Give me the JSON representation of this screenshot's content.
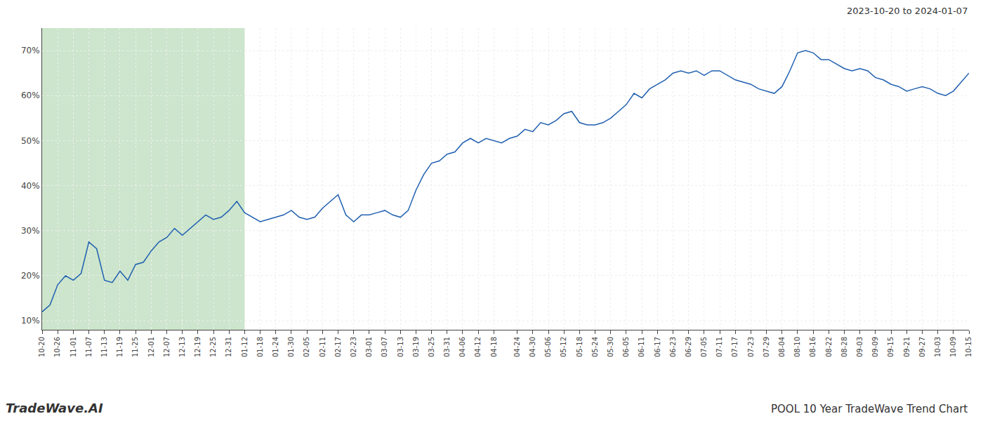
{
  "chart_data": {
    "type": "line",
    "title": "POOL 10 Year TradeWave Trend Chart",
    "subtitle": "2023-10-20 to 2024-01-07",
    "annotations": [
      "TradeWave.AI"
    ],
    "categories": [
      "10-20",
      null,
      "10-26",
      null,
      "11-01",
      null,
      "11-07",
      null,
      "11-13",
      null,
      "11-19",
      null,
      "11-25",
      null,
      "12-01",
      null,
      "12-07",
      null,
      "12-13",
      null,
      "12-19",
      null,
      "12-25",
      null,
      "12-31",
      null,
      "01-12",
      null,
      "01-18",
      null,
      "01-24",
      null,
      "01-30",
      null,
      "02-05",
      null,
      "02-11",
      null,
      "02-17",
      null,
      "02-23",
      null,
      "03-01",
      null,
      "03-07",
      null,
      "03-13",
      null,
      "03-19",
      null,
      "03-25",
      null,
      "03-31",
      null,
      "04-06",
      null,
      "04-12",
      null,
      "04-18",
      null,
      null,
      "04-24",
      null,
      "04-30",
      null,
      "05-06",
      null,
      "05-12",
      null,
      "05-18",
      null,
      "05-24",
      null,
      "05-30",
      null,
      "06-05",
      null,
      "06-11",
      null,
      "06-17",
      null,
      "06-23",
      null,
      "06-29",
      null,
      "07-05",
      null,
      "07-11",
      null,
      "07-17",
      null,
      "07-23",
      null,
      "07-29",
      null,
      "08-04",
      null,
      "08-10",
      null,
      "08-16",
      null,
      "08-22",
      null,
      "08-28",
      null,
      "09-03",
      null,
      "09-09",
      null,
      "09-15",
      null,
      "09-21",
      null,
      "09-27",
      null,
      "10-03",
      null,
      "10-09",
      null,
      "10-15"
    ],
    "values": [
      12.0,
      13.5,
      18.0,
      20.0,
      19.0,
      20.5,
      27.5,
      26.0,
      19.0,
      18.5,
      21.0,
      19.0,
      22.5,
      23.0,
      25.5,
      27.5,
      28.5,
      30.5,
      29.0,
      30.5,
      32.0,
      33.5,
      32.5,
      33.0,
      34.5,
      36.5,
      34.0,
      33.0,
      32.0,
      32.5,
      33.0,
      33.5,
      34.5,
      33.0,
      32.5,
      33.0,
      35.0,
      36.5,
      38.0,
      33.5,
      32.0,
      33.5,
      33.5,
      34.0,
      34.5,
      33.5,
      33.0,
      34.5,
      39.0,
      42.5,
      45.0,
      45.5,
      47.0,
      47.5,
      49.5,
      50.5,
      49.5,
      50.5,
      50.0,
      49.5,
      50.5,
      51.0,
      52.5,
      52.0,
      54.0,
      53.5,
      54.5,
      56.0,
      56.5,
      54.0,
      53.5,
      53.5,
      54.0,
      55.0,
      56.5,
      58.0,
      60.5,
      59.5,
      61.5,
      62.5,
      63.5,
      65.0,
      65.5,
      65.0,
      65.5,
      64.5,
      65.5,
      65.5,
      64.5,
      63.5,
      63.0,
      62.5,
      61.5,
      61.0,
      60.5,
      62.0,
      65.5,
      69.5,
      70.0,
      69.5,
      68.0,
      68.0,
      67.0,
      66.0,
      65.5,
      66.0,
      65.5,
      64.0,
      63.5,
      62.5,
      62.0,
      61.0,
      61.5,
      62.0,
      61.5,
      60.5,
      60.0,
      61.0,
      63.0,
      65.0
    ],
    "color": "#2060b0",
    "ylim": [
      8,
      75
    ],
    "yticks": [
      {
        "value": 10,
        "label": "10%"
      },
      {
        "value": 20,
        "label": "20%"
      },
      {
        "value": 30,
        "label": "30%"
      },
      {
        "value": 40,
        "label": "40%"
      },
      {
        "value": 50,
        "label": "50%"
      },
      {
        "value": 60,
        "label": "60%"
      },
      {
        "value": 70,
        "label": "70%"
      }
    ],
    "grid": true,
    "highlight": {
      "from": "10-20",
      "to": "01-12",
      "color": "#cce5cc"
    }
  }
}
